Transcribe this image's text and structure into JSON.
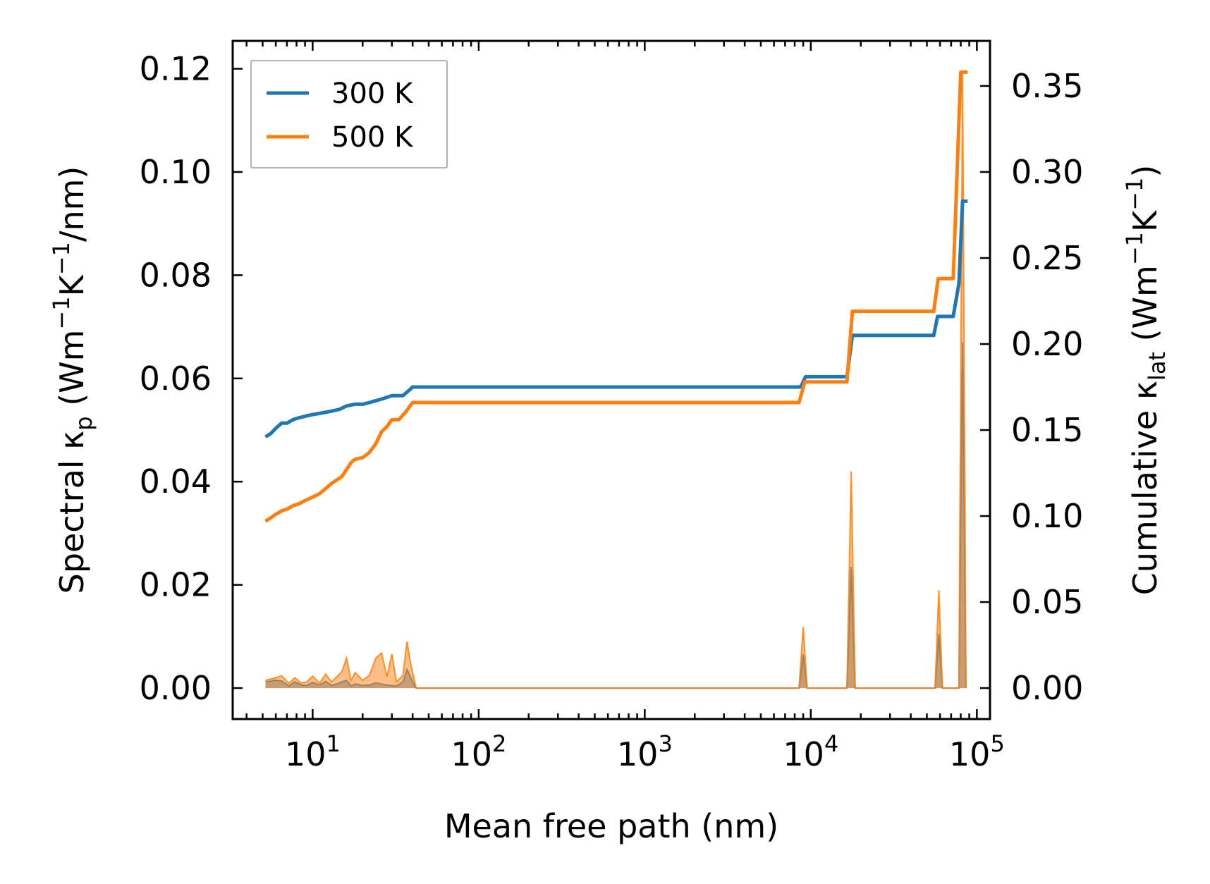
{
  "chart_data": {
    "type": "line",
    "xscale": "log",
    "xlabel": "Mean free path (nm)",
    "ylabel_left": {
      "base": "Spectral κ",
      "sub": "p",
      "units_pre": " (Wm",
      "sup1": "−1",
      "units_mid": "K",
      "sup2": "−1",
      "units_post": "/nm)"
    },
    "ylabel_right": {
      "base": "Cumulative κ",
      "sub": "lat",
      "units_pre": " (Wm",
      "sup1": "−1",
      "units_mid": "K",
      "sup2": "−1",
      "units_post": ")"
    },
    "xlim": [
      3.3,
      120000
    ],
    "ylim_left": [
      -0.006,
      0.1254
    ],
    "ylim_right": [
      -0.018,
      0.3762
    ],
    "xticks": [
      {
        "value": 10,
        "base": "10",
        "exp": "1"
      },
      {
        "value": 100,
        "base": "10",
        "exp": "2"
      },
      {
        "value": 1000,
        "base": "10",
        "exp": "3"
      },
      {
        "value": 10000,
        "base": "10",
        "exp": "4"
      },
      {
        "value": 100000,
        "base": "10",
        "exp": "5"
      }
    ],
    "yticks_left": [
      {
        "value": 0.0,
        "label": "0.00"
      },
      {
        "value": 0.02,
        "label": "0.02"
      },
      {
        "value": 0.04,
        "label": "0.04"
      },
      {
        "value": 0.06,
        "label": "0.06"
      },
      {
        "value": 0.08,
        "label": "0.08"
      },
      {
        "value": 0.1,
        "label": "0.10"
      },
      {
        "value": 0.12,
        "label": "0.12"
      }
    ],
    "yticks_right": [
      {
        "value": 0.0,
        "label": "0.00"
      },
      {
        "value": 0.05,
        "label": "0.05"
      },
      {
        "value": 0.1,
        "label": "0.10"
      },
      {
        "value": 0.15,
        "label": "0.15"
      },
      {
        "value": 0.2,
        "label": "0.20"
      },
      {
        "value": 0.25,
        "label": "0.25"
      },
      {
        "value": 0.3,
        "label": "0.30"
      },
      {
        "value": 0.35,
        "label": "0.35"
      }
    ],
    "legend": {
      "position": "top-left"
    },
    "series": [
      {
        "name": "300 K",
        "color": "#1f77b4",
        "cumulative": [
          [
            5.2,
            0.146
          ],
          [
            5.6,
            0.148
          ],
          [
            6.0,
            0.151
          ],
          [
            6.5,
            0.154
          ],
          [
            7.0,
            0.154
          ],
          [
            7.6,
            0.156
          ],
          [
            8.2,
            0.157
          ],
          [
            9.0,
            0.158
          ],
          [
            10.0,
            0.159
          ],
          [
            11.5,
            0.16
          ],
          [
            13.0,
            0.161
          ],
          [
            14.5,
            0.162
          ],
          [
            16.0,
            0.164
          ],
          [
            18.0,
            0.165
          ],
          [
            20.0,
            0.165
          ],
          [
            22.0,
            0.166
          ],
          [
            24.0,
            0.167
          ],
          [
            26.0,
            0.168
          ],
          [
            28.0,
            0.169
          ],
          [
            30.0,
            0.17
          ],
          [
            35.0,
            0.17
          ],
          [
            38.0,
            0.173
          ],
          [
            40.0,
            0.175
          ],
          [
            8700,
            0.175
          ],
          [
            9300,
            0.181
          ],
          [
            16500,
            0.181
          ],
          [
            17800,
            0.205
          ],
          [
            55000,
            0.205
          ],
          [
            58000,
            0.216
          ],
          [
            72000,
            0.216
          ],
          [
            78000,
            0.235
          ],
          [
            82000,
            0.283
          ],
          [
            88000,
            0.283
          ]
        ],
        "spectral": [
          [
            5.2,
            0.0012
          ],
          [
            6.0,
            0.0015
          ],
          [
            6.5,
            0.0014
          ],
          [
            7.2,
            0.0004
          ],
          [
            7.8,
            0.0012
          ],
          [
            8.5,
            0.0006
          ],
          [
            9.2,
            0.0005
          ],
          [
            10.0,
            0.0011
          ],
          [
            11.0,
            0.0006
          ],
          [
            12.0,
            0.0013
          ],
          [
            13.0,
            0.0005
          ],
          [
            14.0,
            0.0008
          ],
          [
            15.0,
            0.0012
          ],
          [
            16.0,
            0.0015
          ],
          [
            17.0,
            0.0004
          ],
          [
            18.0,
            0.0008
          ],
          [
            20.0,
            0.0005
          ],
          [
            22.0,
            0.0006
          ],
          [
            24.0,
            0.001
          ],
          [
            26.0,
            0.0008
          ],
          [
            28.0,
            0.0006
          ],
          [
            32.0,
            0.0004
          ],
          [
            35.0,
            0.0012
          ],
          [
            37.0,
            0.0036
          ],
          [
            39.0,
            0.002
          ],
          [
            42.0,
            0.0
          ],
          [
            8500,
            0.0
          ],
          [
            9000,
            0.0065
          ],
          [
            9500,
            0.0
          ],
          [
            16500,
            0.0
          ],
          [
            17500,
            0.0235
          ],
          [
            18500,
            0.0
          ],
          [
            56000,
            0.0
          ],
          [
            59000,
            0.0105
          ],
          [
            62000,
            0.0
          ],
          [
            78000,
            0.0
          ],
          [
            82000,
            0.067
          ],
          [
            86000,
            0.0
          ]
        ]
      },
      {
        "name": "500 K",
        "color": "#ff7f0e",
        "cumulative": [
          [
            5.2,
            0.097
          ],
          [
            5.6,
            0.099
          ],
          [
            6.0,
            0.101
          ],
          [
            6.5,
            0.103
          ],
          [
            7.0,
            0.104
          ],
          [
            7.6,
            0.106
          ],
          [
            8.2,
            0.107
          ],
          [
            9.0,
            0.109
          ],
          [
            10.0,
            0.111
          ],
          [
            11.0,
            0.113
          ],
          [
            12.0,
            0.116
          ],
          [
            13.0,
            0.119
          ],
          [
            14.0,
            0.121
          ],
          [
            15.0,
            0.123
          ],
          [
            16.0,
            0.127
          ],
          [
            17.0,
            0.131
          ],
          [
            18.0,
            0.133
          ],
          [
            20.0,
            0.134
          ],
          [
            22.0,
            0.137
          ],
          [
            24.0,
            0.142
          ],
          [
            26.0,
            0.149
          ],
          [
            28.0,
            0.152
          ],
          [
            30.0,
            0.156
          ],
          [
            33.0,
            0.156
          ],
          [
            36.0,
            0.16
          ],
          [
            40.0,
            0.166
          ],
          [
            8500,
            0.166
          ],
          [
            9200,
            0.178
          ],
          [
            16500,
            0.178
          ],
          [
            17800,
            0.219
          ],
          [
            55000,
            0.219
          ],
          [
            58500,
            0.238
          ],
          [
            72000,
            0.238
          ],
          [
            80000,
            0.358
          ],
          [
            88000,
            0.358
          ]
        ],
        "spectral": [
          [
            5.2,
            0.0015
          ],
          [
            6.0,
            0.002
          ],
          [
            6.5,
            0.0024
          ],
          [
            7.2,
            0.0009
          ],
          [
            7.8,
            0.002
          ],
          [
            8.5,
            0.001
          ],
          [
            9.2,
            0.0012
          ],
          [
            10.0,
            0.0023
          ],
          [
            11.0,
            0.001
          ],
          [
            12.0,
            0.0027
          ],
          [
            13.0,
            0.0012
          ],
          [
            14.0,
            0.0022
          ],
          [
            15.0,
            0.0032
          ],
          [
            16.0,
            0.0058
          ],
          [
            17.0,
            0.0014
          ],
          [
            18.0,
            0.003
          ],
          [
            20.0,
            0.0015
          ],
          [
            22.0,
            0.0025
          ],
          [
            24.0,
            0.0058
          ],
          [
            26.0,
            0.0068
          ],
          [
            28.0,
            0.0022
          ],
          [
            30.0,
            0.0066
          ],
          [
            32.0,
            0.0012
          ],
          [
            35.0,
            0.0025
          ],
          [
            37.0,
            0.009
          ],
          [
            39.0,
            0.0045
          ],
          [
            42.0,
            0.0
          ],
          [
            8500,
            0.0
          ],
          [
            9000,
            0.0118
          ],
          [
            9500,
            0.0
          ],
          [
            16500,
            0.0
          ],
          [
            17500,
            0.042
          ],
          [
            18500,
            0.0
          ],
          [
            56000,
            0.0
          ],
          [
            59000,
            0.019
          ],
          [
            62000,
            0.0
          ],
          [
            78000,
            0.0
          ],
          [
            82000,
            0.119
          ],
          [
            86000,
            0.0
          ]
        ]
      }
    ]
  }
}
